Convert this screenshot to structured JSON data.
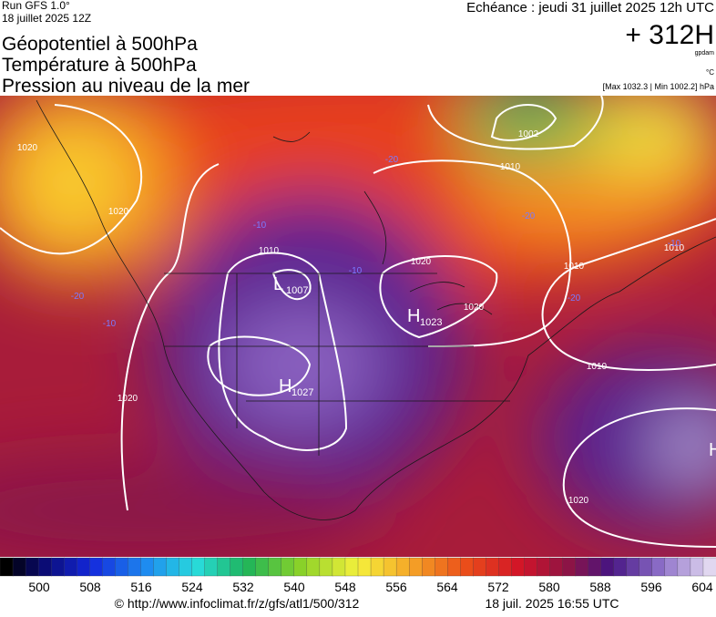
{
  "header": {
    "run": "Run GFS 1.0°",
    "run_date": "18 juillet 2025 12Z",
    "valid": "Echéance : jeudi 31 juillet 2025 12h UTC",
    "lead": "+ 312H",
    "unit_gp": "gpdam",
    "unit_t": "°C",
    "extremes": "[Max 1032.3 | Min 1002.2] hPa"
  },
  "titles": [
    "Géopotentiel à 500hPa",
    "Température à 500hPa",
    "Pression au niveau de la mer"
  ],
  "map": {
    "isobar_labels": [
      "1020",
      "1020",
      "1010",
      "1002",
      "1010",
      "1020",
      "1010",
      "1010",
      "1020",
      "1020",
      "1020",
      "1010"
    ],
    "temperature_labels": [
      "-20",
      "-10",
      "-20",
      "-10",
      "-10",
      "-20",
      "-20",
      "-10"
    ],
    "centers": [
      {
        "letter": "L",
        "value": "1007"
      },
      {
        "letter": "H",
        "value": "1023"
      },
      {
        "letter": "H",
        "value": "1027"
      },
      {
        "letter": "H"
      }
    ]
  },
  "colorbar": {
    "labels": [
      500,
      508,
      516,
      524,
      532,
      540,
      548,
      556,
      564,
      572,
      580,
      588,
      596,
      604
    ]
  },
  "footer": {
    "url": "© http://www.infoclimat.fr/z/gfs/atl1/500/312",
    "timestamp": "18 juil. 2025 16:55 UTC"
  }
}
